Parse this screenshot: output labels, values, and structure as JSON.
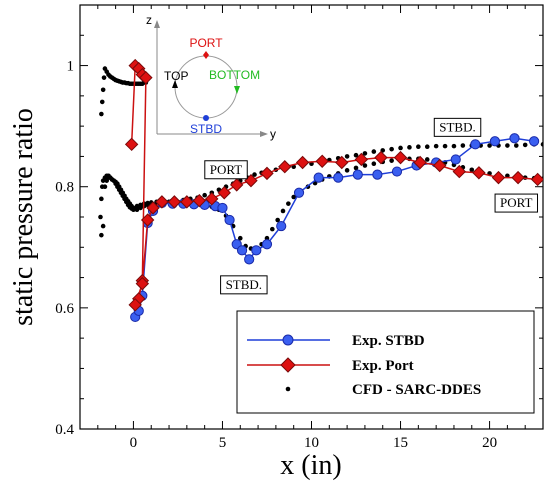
{
  "chart_data": {
    "type": "line",
    "title": "",
    "xlabel": "x (in)",
    "ylabel": "static pressure ratio",
    "xlim": [
      -3,
      23
    ],
    "ylim": [
      0.4,
      1.1
    ],
    "x_ticks": [
      0,
      5,
      10,
      15,
      20
    ],
    "y_ticks": [
      0.4,
      0.6,
      0.8,
      1.0
    ],
    "x_tick_labels": [
      "0",
      "5",
      "10",
      "15",
      "20"
    ],
    "y_tick_labels": [
      "0.4",
      "0.6",
      "0.8",
      "1"
    ],
    "grid": false,
    "legend_position": "bottom-right",
    "series": [
      {
        "name": "Exp. STBD",
        "style": "line-circle",
        "color": "#1f3fd8",
        "x": [
          0.1,
          0.3,
          0.5,
          0.8,
          1.1,
          1.6,
          2.2,
          2.8,
          3.4,
          4.0,
          4.6,
          5.0,
          5.4,
          5.8,
          6.1,
          6.5,
          6.9,
          7.5,
          8.3,
          9.3,
          10.4,
          11.5,
          12.6,
          13.7,
          14.8,
          15.9,
          17.0,
          18.1,
          19.2,
          20.3,
          21.4,
          22.5
        ],
        "y": [
          0.585,
          0.595,
          0.62,
          0.74,
          0.76,
          0.773,
          0.772,
          0.772,
          0.771,
          0.77,
          0.768,
          0.765,
          0.745,
          0.705,
          0.695,
          0.68,
          0.695,
          0.705,
          0.735,
          0.79,
          0.815,
          0.815,
          0.82,
          0.82,
          0.825,
          0.835,
          0.84,
          0.845,
          0.87,
          0.875,
          0.88,
          0.875
        ]
      },
      {
        "name": "Exp. Port",
        "style": "line-diamond",
        "color": "#cc1111",
        "x": [
          -0.1,
          0.1,
          0.3,
          0.5,
          0.7,
          0.5,
          0.3,
          0.1,
          0.5,
          0.8,
          1.1,
          1.6,
          2.3,
          3.0,
          3.7,
          4.4,
          5.1,
          5.8,
          6.6,
          7.5,
          8.5,
          9.5,
          10.6,
          11.7,
          12.8,
          13.9,
          15.0,
          16.1,
          17.2,
          18.3,
          19.4,
          20.5,
          21.6,
          22.7
        ],
        "y": [
          0.87,
          1.0,
          0.995,
          0.985,
          0.98,
          0.645,
          0.615,
          0.605,
          0.64,
          0.745,
          0.765,
          0.775,
          0.775,
          0.775,
          0.777,
          0.78,
          0.79,
          0.803,
          0.81,
          0.822,
          0.833,
          0.84,
          0.842,
          0.84,
          0.845,
          0.848,
          0.848,
          0.84,
          0.835,
          0.825,
          0.823,
          0.815,
          0.815,
          0.812
        ]
      },
      {
        "name": "CFD - SARC-DDES",
        "style": "dots",
        "color": "#000000",
        "branches": [
          {
            "x": [
              -1.8,
              -1.75,
              -1.7,
              -1.65,
              -1.6,
              -1.5,
              -1.4,
              -1.3,
              -1.2,
              -1.1,
              -1.0,
              -0.9,
              -0.8,
              -0.7,
              -0.6,
              -0.5,
              -0.4,
              -0.3,
              -0.2,
              -0.1,
              0.0,
              0.1,
              0.2,
              0.3,
              0.4,
              0.5,
              0.6,
              0.7
            ],
            "y": [
              0.92,
              0.94,
              0.96,
              0.98,
              0.995,
              0.99,
              0.985,
              0.982,
              0.98,
              0.978,
              0.976,
              0.975,
              0.974,
              0.973,
              0.972,
              0.972,
              0.971,
              0.971,
              0.97,
              0.97,
              0.97,
              0.97,
              0.97,
              0.97,
              0.97,
              0.97,
              0.972,
              0.972
            ]
          },
          {
            "x": [
              -1.85,
              -1.8,
              -1.75,
              -1.7,
              -1.6,
              -1.5,
              -1.4,
              -1.3,
              -1.2,
              -1.1,
              -1.0,
              -0.9,
              -0.8,
              -0.7,
              -0.6,
              -0.5,
              -0.4,
              -0.3,
              -0.2,
              -0.1,
              0.0,
              0.2,
              0.4,
              0.6,
              0.8,
              1.0,
              1.3,
              1.6,
              2.0,
              2.4,
              2.8,
              3.2,
              3.6,
              4.0,
              4.4,
              4.8,
              5.2,
              5.6,
              6.0,
              6.4,
              6.8,
              7.2,
              7.6,
              8.0,
              8.5,
              9.0,
              9.5,
              10.0,
              10.5,
              11.0,
              11.5,
              12.0,
              12.5,
              13.0,
              13.5,
              14.0,
              14.5,
              15.0,
              15.5,
              16.0,
              16.5,
              17.0,
              17.5,
              18.0,
              18.5,
              19.0,
              19.5,
              20.0,
              20.5,
              21.0,
              21.5,
              22.0,
              22.5,
              23.0
            ],
            "y": [
              0.75,
              0.78,
              0.8,
              0.81,
              0.815,
              0.818,
              0.818,
              0.815,
              0.812,
              0.81,
              0.805,
              0.8,
              0.795,
              0.79,
              0.785,
              0.78,
              0.775,
              0.77,
              0.766,
              0.764,
              0.762,
              0.762,
              0.765,
              0.768,
              0.77,
              0.772,
              0.773,
              0.774,
              0.775,
              0.776,
              0.778,
              0.78,
              0.782,
              0.786,
              0.79,
              0.795,
              0.8,
              0.805,
              0.81,
              0.815,
              0.82,
              0.823,
              0.825,
              0.828,
              0.83,
              0.833,
              0.836,
              0.838,
              0.841,
              0.844,
              0.847,
              0.85,
              0.852,
              0.855,
              0.858,
              0.86,
              0.862,
              0.864,
              0.865,
              0.866,
              0.866,
              0.867,
              0.867,
              0.867,
              0.868,
              0.868,
              0.868,
              0.868,
              0.868,
              0.868,
              0.868,
              0.869,
              0.87,
              0.87
            ]
          },
          {
            "x": [
              -1.8,
              -1.7,
              -1.6,
              -1.5,
              -1.4,
              -1.3,
              -1.2,
              -1.1,
              -1.0,
              -0.9,
              -0.8,
              -0.7,
              -0.6,
              -0.5,
              -0.4,
              -0.3,
              -0.2,
              -0.1,
              0.0,
              0.2,
              0.4,
              0.6,
              0.8,
              1.0,
              1.3,
              1.6,
              2.0,
              2.4,
              2.8,
              3.2,
              3.6,
              4.0,
              4.4,
              4.8,
              5.2,
              5.6,
              6.0,
              6.3,
              6.6,
              6.9,
              7.2,
              7.5,
              7.8,
              8.1,
              8.4,
              8.7,
              9.0,
              9.4,
              9.8,
              10.2,
              10.6,
              11.0,
              11.5,
              12.0,
              12.5,
              13.0,
              13.5,
              14.0,
              14.5,
              15.0,
              15.5,
              16.0,
              16.5,
              17.0,
              17.5,
              18.0,
              18.5,
              19.0,
              19.5,
              20.0,
              20.5,
              21.0,
              21.5,
              22.0,
              22.5,
              23.0
            ],
            "y": [
              0.72,
              0.735,
              0.8,
              0.81,
              0.815,
              0.815,
              0.812,
              0.81,
              0.808,
              0.805,
              0.8,
              0.795,
              0.79,
              0.785,
              0.78,
              0.776,
              0.772,
              0.768,
              0.765,
              0.768,
              0.77,
              0.772,
              0.773,
              0.774,
              0.775,
              0.775,
              0.775,
              0.775,
              0.774,
              0.773,
              0.772,
              0.77,
              0.767,
              0.762,
              0.752,
              0.735,
              0.715,
              0.702,
              0.698,
              0.699,
              0.705,
              0.715,
              0.73,
              0.745,
              0.76,
              0.772,
              0.783,
              0.793,
              0.8,
              0.806,
              0.812,
              0.817,
              0.822,
              0.827,
              0.831,
              0.835,
              0.838,
              0.841,
              0.843,
              0.845,
              0.846,
              0.846,
              0.845,
              0.843,
              0.84,
              0.836,
              0.832,
              0.828,
              0.825,
              0.822,
              0.82,
              0.818,
              0.816,
              0.815,
              0.814,
              0.813
            ]
          }
        ]
      }
    ],
    "annotations": [
      {
        "text": "PORT",
        "x": 5.2,
        "y": 0.828
      },
      {
        "text": "STBD.",
        "x": 6.2,
        "y": 0.638
      },
      {
        "text": "STBD.",
        "x": 18.2,
        "y": 0.898
      },
      {
        "text": "PORT",
        "x": 21.5,
        "y": 0.773
      }
    ],
    "inset": {
      "labels": {
        "z": "z",
        "y": "y",
        "port": "PORT",
        "top": "TOP",
        "bottom": "BOTTOM",
        "stbd": "STBD"
      },
      "colors": {
        "port": "#dd1111",
        "top": "#000000",
        "bottom": "#22bb22",
        "stbd": "#1f3fd8",
        "circle": "#999999"
      }
    }
  }
}
